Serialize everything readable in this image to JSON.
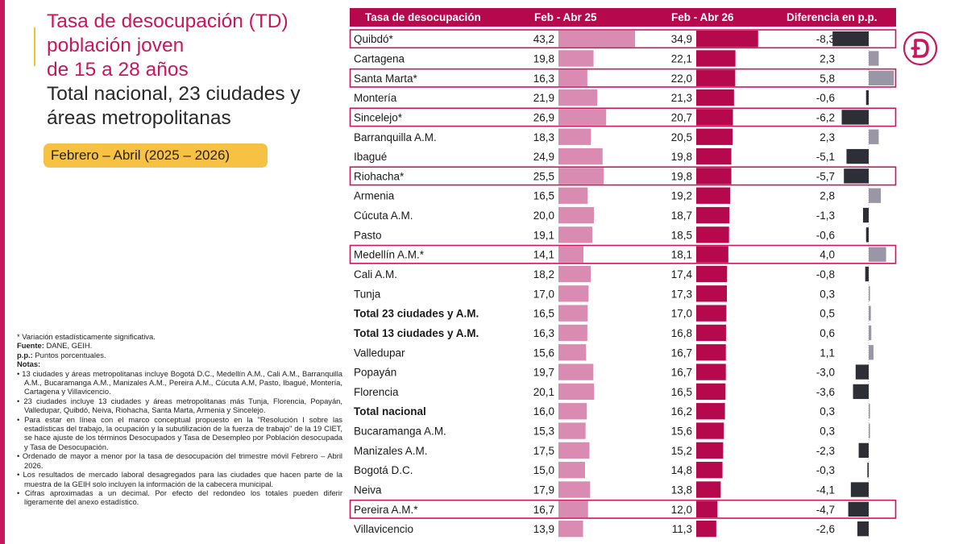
{
  "title": {
    "line1_a": "Tasa de desocupación",
    "line1_b": "(TD)",
    "line2": "población joven",
    "line3": "de 15 a 28 años",
    "line4": "Total nacional, 23 ciudades y",
    "line5": "áreas metropolitanas"
  },
  "period_badge": "Febrero – Abril (2025 – 2026)",
  "notes": {
    "significance": "* Variación estadísticamente significativa.",
    "source_label": "Fuente:",
    "source_value": "DANE, GEIH.",
    "pp_label": "p.p.:",
    "pp_value": "Puntos porcentuales.",
    "notes_label": "Notas:",
    "bullets": [
      "13 ciudades y áreas metropolitanas incluye Bogotá D.C., Medellín A.M., Cali A.M., Barranquilla A.M., Bucaramanga A.M., Manizales A.M., Pereira A.M., Cúcuta A.M, Pasto, Ibagué, Montería, Cartagena y Villavicencio.",
      "23 ciudades incluye 13 ciudades y áreas metropolitanas más Tunja, Florencia, Popayán, Valledupar, Quibdó, Neiva, Riohacha, Santa Marta, Armenia y Sincelejo.",
      "Para estar en línea con el marco conceptual propuesto en la \"Resolución I sobre las estadísticas del trabajo, la ocupación y la subutilización de la fuerza de trabajo\" de la 19 CIET, se hace ajuste de los términos Desocupados y Tasa de Desempleo por Población desocupada y Tasa de Desocupación.",
      "Ordenado de mayor a menor por la tasa de desocupación del trimestre móvil Febrero – Abril 2026.",
      "Los resultados de mercado laboral desagregados para las ciudades que hacen parte de la muestra de la GEIH solo incluyen la información de la cabecera municipal.",
      "Cifras aproximadas a un decimal. Por efecto del redondeo los totales pueden diferir ligeramente del anexo estadístico."
    ]
  },
  "colors": {
    "accent": "#c8175d",
    "bar_2025": "#d98bb1",
    "bar_2026": "#b5084d",
    "diff_negative": "#2e2e36",
    "diff_positive": "#9b96a6",
    "badge": "#f7c244",
    "header_bg": "#b5084d"
  },
  "chart_data": {
    "type": "table",
    "columns": [
      "Tasa de desocupación",
      "Feb - Abr 25",
      "Feb - Abr 26",
      "Diferencia en p.p."
    ],
    "rows": [
      {
        "name": "Quibdó*",
        "v2025": 43.2,
        "v2025_label": "43,2",
        "v2026": 34.9,
        "v2026_label": "34,9",
        "diff": -8.3,
        "diff_label": "-8,3",
        "bold": false,
        "highlight": true
      },
      {
        "name": "Cartagena",
        "v2025": 19.8,
        "v2025_label": "19,8",
        "v2026": 22.1,
        "v2026_label": "22,1",
        "diff": 2.3,
        "diff_label": "2,3",
        "bold": false,
        "highlight": false
      },
      {
        "name": "Santa Marta*",
        "v2025": 16.3,
        "v2025_label": "16,3",
        "v2026": 22.0,
        "v2026_label": "22,0",
        "diff": 5.8,
        "diff_label": "5,8",
        "bold": false,
        "highlight": true
      },
      {
        "name": "Montería",
        "v2025": 21.9,
        "v2025_label": "21,9",
        "v2026": 21.3,
        "v2026_label": "21,3",
        "diff": -0.6,
        "diff_label": "-0,6",
        "bold": false,
        "highlight": false
      },
      {
        "name": "Sincelejo*",
        "v2025": 26.9,
        "v2025_label": "26,9",
        "v2026": 20.7,
        "v2026_label": "20,7",
        "diff": -6.2,
        "diff_label": "-6,2",
        "bold": false,
        "highlight": true
      },
      {
        "name": "Barranquilla A.M.",
        "v2025": 18.3,
        "v2025_label": "18,3",
        "v2026": 20.5,
        "v2026_label": "20,5",
        "diff": 2.3,
        "diff_label": "2,3",
        "bold": false,
        "highlight": false
      },
      {
        "name": "Ibagué",
        "v2025": 24.9,
        "v2025_label": "24,9",
        "v2026": 19.8,
        "v2026_label": "19,8",
        "diff": -5.1,
        "diff_label": "-5,1",
        "bold": false,
        "highlight": false
      },
      {
        "name": "Riohacha*",
        "v2025": 25.5,
        "v2025_label": "25,5",
        "v2026": 19.8,
        "v2026_label": "19,8",
        "diff": -5.7,
        "diff_label": "-5,7",
        "bold": false,
        "highlight": true
      },
      {
        "name": "Armenia",
        "v2025": 16.5,
        "v2025_label": "16,5",
        "v2026": 19.2,
        "v2026_label": "19,2",
        "diff": 2.8,
        "diff_label": "2,8",
        "bold": false,
        "highlight": false
      },
      {
        "name": "Cúcuta A.M.",
        "v2025": 20.0,
        "v2025_label": "20,0",
        "v2026": 18.7,
        "v2026_label": "18,7",
        "diff": -1.3,
        "diff_label": "-1,3",
        "bold": false,
        "highlight": false
      },
      {
        "name": "Pasto",
        "v2025": 19.1,
        "v2025_label": "19,1",
        "v2026": 18.5,
        "v2026_label": "18,5",
        "diff": -0.6,
        "diff_label": "-0,6",
        "bold": false,
        "highlight": false
      },
      {
        "name": "Medellín A.M.*",
        "v2025": 14.1,
        "v2025_label": "14,1",
        "v2026": 18.1,
        "v2026_label": "18,1",
        "diff": 4.0,
        "diff_label": "4,0",
        "bold": false,
        "highlight": true
      },
      {
        "name": "Cali A.M.",
        "v2025": 18.2,
        "v2025_label": "18,2",
        "v2026": 17.4,
        "v2026_label": "17,4",
        "diff": -0.8,
        "diff_label": "-0,8",
        "bold": false,
        "highlight": false
      },
      {
        "name": "Tunja",
        "v2025": 17.0,
        "v2025_label": "17,0",
        "v2026": 17.3,
        "v2026_label": "17,3",
        "diff": 0.3,
        "diff_label": "0,3",
        "bold": false,
        "highlight": false
      },
      {
        "name": "Total 23 ciudades y A.M.",
        "v2025": 16.5,
        "v2025_label": "16,5",
        "v2026": 17.0,
        "v2026_label": "17,0",
        "diff": 0.5,
        "diff_label": "0,5",
        "bold": true,
        "highlight": false
      },
      {
        "name": "Total 13 ciudades y A.M.",
        "v2025": 16.3,
        "v2025_label": "16,3",
        "v2026": 16.8,
        "v2026_label": "16,8",
        "diff": 0.6,
        "diff_label": "0,6",
        "bold": true,
        "highlight": false
      },
      {
        "name": "Valledupar",
        "v2025": 15.6,
        "v2025_label": "15,6",
        "v2026": 16.7,
        "v2026_label": "16,7",
        "diff": 1.1,
        "diff_label": "1,1",
        "bold": false,
        "highlight": false
      },
      {
        "name": "Popayán",
        "v2025": 19.7,
        "v2025_label": "19,7",
        "v2026": 16.7,
        "v2026_label": "16,7",
        "diff": -3.0,
        "diff_label": "-3,0",
        "bold": false,
        "highlight": false
      },
      {
        "name": "Florencia",
        "v2025": 20.1,
        "v2025_label": "20,1",
        "v2026": 16.5,
        "v2026_label": "16,5",
        "diff": -3.6,
        "diff_label": "-3,6",
        "bold": false,
        "highlight": false
      },
      {
        "name": "Total nacional",
        "v2025": 16.0,
        "v2025_label": "16,0",
        "v2026": 16.2,
        "v2026_label": "16,2",
        "diff": 0.3,
        "diff_label": "0,3",
        "bold": true,
        "highlight": false
      },
      {
        "name": "Bucaramanga A.M.",
        "v2025": 15.3,
        "v2025_label": "15,3",
        "v2026": 15.6,
        "v2026_label": "15,6",
        "diff": 0.3,
        "diff_label": "0,3",
        "bold": false,
        "highlight": false
      },
      {
        "name": "Manizales A.M.",
        "v2025": 17.5,
        "v2025_label": "17,5",
        "v2026": 15.2,
        "v2026_label": "15,2",
        "diff": -2.3,
        "diff_label": "-2,3",
        "bold": false,
        "highlight": false
      },
      {
        "name": "Bogotá D.C.",
        "v2025": 15.0,
        "v2025_label": "15,0",
        "v2026": 14.8,
        "v2026_label": "14,8",
        "diff": -0.3,
        "diff_label": "-0,3",
        "bold": false,
        "highlight": false
      },
      {
        "name": "Neiva",
        "v2025": 17.9,
        "v2025_label": "17,9",
        "v2026": 13.8,
        "v2026_label": "13,8",
        "diff": -4.1,
        "diff_label": "-4,1",
        "bold": false,
        "highlight": false
      },
      {
        "name": "Pereira A.M.*",
        "v2025": 16.7,
        "v2025_label": "16,7",
        "v2026": 12.0,
        "v2026_label": "12,0",
        "diff": -4.7,
        "diff_label": "-4,7",
        "bold": false,
        "highlight": true
      },
      {
        "name": "Villavicencio",
        "v2025": 13.9,
        "v2025_label": "13,9",
        "v2026": 11.3,
        "v2026_label": "11,3",
        "diff": -2.6,
        "diff_label": "-2,6",
        "bold": false,
        "highlight": false
      }
    ]
  }
}
